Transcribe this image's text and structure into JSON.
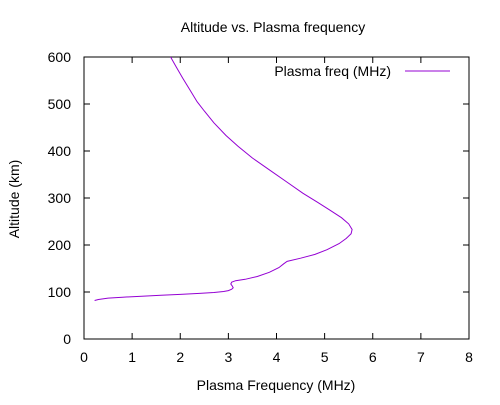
{
  "chart_data": {
    "type": "line",
    "title": "Altitude vs. Plasma frequency",
    "xlabel": "Plasma Frequency (MHz)",
    "ylabel": "Altitude (km)",
    "xlim": [
      0,
      8
    ],
    "ylim": [
      0,
      600
    ],
    "xticks": [
      0,
      1,
      2,
      3,
      4,
      5,
      6,
      7,
      8
    ],
    "yticks": [
      0,
      100,
      200,
      300,
      400,
      500,
      600
    ],
    "grid": false,
    "legend_position": "top-right",
    "series": [
      {
        "name": "Plasma freq (MHz)",
        "color": "#9400D3",
        "points": [
          [
            0.22,
            82
          ],
          [
            0.3,
            84
          ],
          [
            0.5,
            87
          ],
          [
            0.8,
            89
          ],
          [
            1.2,
            91
          ],
          [
            1.6,
            93
          ],
          [
            2.0,
            95
          ],
          [
            2.4,
            97
          ],
          [
            2.7,
            99
          ],
          [
            2.9,
            101
          ],
          [
            3.0,
            103
          ],
          [
            3.07,
            106
          ],
          [
            3.1,
            109
          ],
          [
            3.08,
            113
          ],
          [
            3.05,
            117
          ],
          [
            3.07,
            121
          ],
          [
            3.15,
            124
          ],
          [
            3.35,
            127
          ],
          [
            3.6,
            133
          ],
          [
            3.85,
            142
          ],
          [
            4.05,
            152
          ],
          [
            4.15,
            160
          ],
          [
            4.22,
            165
          ],
          [
            4.5,
            172
          ],
          [
            4.8,
            180
          ],
          [
            5.05,
            190
          ],
          [
            5.3,
            203
          ],
          [
            5.45,
            214
          ],
          [
            5.55,
            224
          ],
          [
            5.57,
            233
          ],
          [
            5.5,
            245
          ],
          [
            5.35,
            258
          ],
          [
            5.1,
            275
          ],
          [
            4.85,
            291
          ],
          [
            4.55,
            310
          ],
          [
            4.2,
            335
          ],
          [
            3.85,
            360
          ],
          [
            3.5,
            385
          ],
          [
            3.2,
            410
          ],
          [
            2.95,
            433
          ],
          [
            2.7,
            460
          ],
          [
            2.5,
            485
          ],
          [
            2.35,
            505
          ],
          [
            2.2,
            530
          ],
          [
            2.05,
            555
          ],
          [
            1.92,
            578
          ],
          [
            1.8,
            600
          ]
        ]
      }
    ]
  }
}
